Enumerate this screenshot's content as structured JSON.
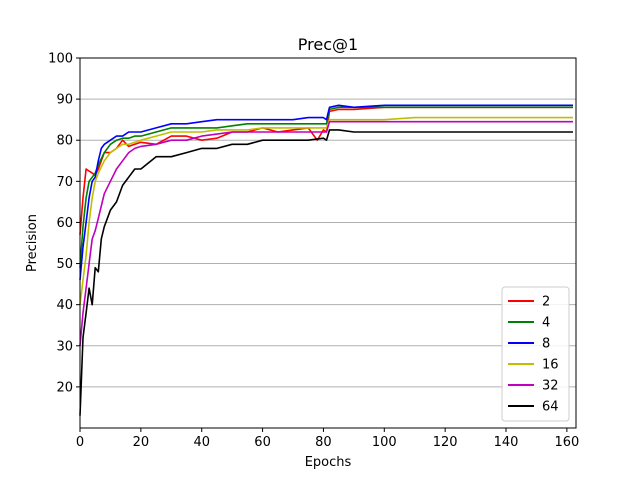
{
  "chart_data": {
    "type": "line",
    "title": "Prec@1",
    "xlabel": "Epochs",
    "ylabel": "Precision",
    "xlim": [
      0,
      163
    ],
    "ylim": [
      10,
      100
    ],
    "xticks": [
      0,
      20,
      40,
      60,
      80,
      100,
      120,
      140,
      160
    ],
    "yticks": [
      20,
      30,
      40,
      50,
      60,
      70,
      80,
      90,
      100
    ],
    "grid": "horizontal",
    "legend_position": "lower-right",
    "series": [
      {
        "name": "2",
        "color": "#ff0000",
        "x": [
          0,
          1,
          2,
          3,
          4,
          5,
          6,
          8,
          10,
          12,
          14,
          16,
          18,
          20,
          25,
          30,
          35,
          40,
          45,
          50,
          55,
          60,
          65,
          70,
          75,
          78,
          80,
          81,
          82,
          85,
          90,
          100,
          110,
          120,
          130,
          140,
          150,
          162
        ],
        "y": [
          57,
          66,
          73,
          72.5,
          72,
          71.5,
          73,
          77,
          77,
          78,
          80,
          78.5,
          79,
          79.5,
          79,
          81,
          81,
          80,
          80.5,
          82,
          82,
          83,
          82,
          82.5,
          83,
          80,
          82.5,
          82,
          87,
          87.5,
          87.5,
          88,
          88,
          88,
          88,
          88,
          88,
          88
        ]
      },
      {
        "name": "4",
        "color": "#008000",
        "x": [
          0,
          1,
          2,
          3,
          4,
          5,
          6,
          8,
          10,
          12,
          14,
          16,
          18,
          20,
          25,
          30,
          35,
          40,
          45,
          50,
          55,
          60,
          65,
          70,
          75,
          80,
          81,
          82,
          85,
          90,
          100,
          110,
          120,
          130,
          140,
          150,
          162
        ],
        "y": [
          49,
          59,
          66,
          70,
          71,
          72,
          74,
          77,
          79,
          80,
          80.5,
          80.5,
          81,
          81,
          82,
          83,
          83,
          83,
          83,
          83.5,
          84,
          84,
          84,
          84,
          84,
          84,
          84,
          87.5,
          88,
          88,
          88,
          88,
          88,
          88,
          88,
          88,
          88
        ]
      },
      {
        "name": "8",
        "color": "#0000ff",
        "x": [
          0,
          1,
          2,
          3,
          4,
          5,
          6,
          7,
          8,
          10,
          12,
          14,
          16,
          18,
          20,
          25,
          30,
          35,
          40,
          45,
          50,
          55,
          60,
          65,
          70,
          75,
          80,
          81,
          82,
          85,
          90,
          100,
          110,
          120,
          130,
          140,
          150,
          162
        ],
        "y": [
          46,
          54,
          60,
          66,
          70,
          71,
          75,
          78,
          79,
          80,
          81,
          81,
          82,
          82,
          82,
          83,
          84,
          84,
          84.5,
          85,
          85,
          85,
          85,
          85,
          85,
          85.5,
          85.5,
          85,
          88,
          88.5,
          88,
          88.5,
          88.5,
          88.5,
          88.5,
          88.5,
          88.5,
          88.5
        ]
      },
      {
        "name": "16",
        "color": "#bfbf00",
        "x": [
          0,
          1,
          2,
          3,
          4,
          5,
          6,
          8,
          10,
          12,
          14,
          16,
          18,
          20,
          25,
          30,
          35,
          40,
          45,
          50,
          55,
          60,
          65,
          70,
          75,
          80,
          81,
          82,
          85,
          90,
          100,
          110,
          120,
          130,
          140,
          150,
          162
        ],
        "y": [
          40,
          46,
          52,
          60,
          66,
          70,
          72,
          75,
          77,
          78,
          79,
          79,
          79.5,
          80,
          81,
          82,
          82,
          82,
          82.5,
          82.5,
          82.5,
          83,
          83,
          83,
          83,
          83,
          83,
          85,
          85,
          85,
          85,
          85.5,
          85.5,
          85.5,
          85.5,
          85.5,
          85.5
        ]
      },
      {
        "name": "32",
        "color": "#bf00bf",
        "x": [
          0,
          1,
          2,
          3,
          4,
          5,
          6,
          7,
          8,
          10,
          12,
          14,
          16,
          18,
          20,
          25,
          30,
          35,
          40,
          45,
          50,
          55,
          60,
          65,
          70,
          75,
          80,
          81,
          82,
          85,
          90,
          100,
          110,
          120,
          130,
          140,
          150,
          162
        ],
        "y": [
          30,
          38,
          44,
          50,
          56,
          58,
          61,
          64,
          67,
          70,
          73,
          75,
          77,
          78,
          78.5,
          79,
          80,
          80,
          81,
          81.5,
          82,
          82,
          82,
          82,
          82,
          82,
          82,
          82,
          84.5,
          84.5,
          84.5,
          84.5,
          84.5,
          84.5,
          84.5,
          84.5,
          84.5,
          84.5
        ]
      },
      {
        "name": "64",
        "color": "#000000",
        "x": [
          0,
          1,
          2,
          3,
          4,
          5,
          6,
          7,
          8,
          9,
          10,
          12,
          14,
          16,
          18,
          20,
          25,
          30,
          35,
          40,
          45,
          50,
          55,
          60,
          65,
          70,
          75,
          80,
          81,
          82,
          85,
          90,
          100,
          110,
          120,
          130,
          140,
          150,
          162
        ],
        "y": [
          13,
          32,
          38,
          44,
          40,
          49,
          48,
          56,
          59,
          61,
          63,
          65,
          69,
          71,
          73,
          73,
          76,
          76,
          77,
          78,
          78,
          79,
          79,
          80,
          80,
          80,
          80,
          80.5,
          80,
          82.5,
          82.5,
          82,
          82,
          82,
          82,
          82,
          82,
          82,
          82
        ]
      }
    ]
  }
}
